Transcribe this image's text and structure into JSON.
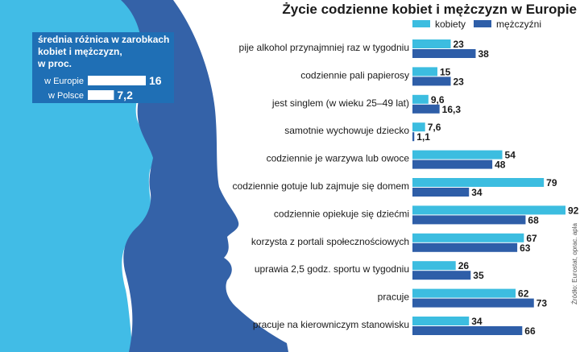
{
  "colors": {
    "women": "#3cbde0",
    "men": "#2e5ea8",
    "silhouette_light": "#41bce6",
    "silhouette_dark": "#3462a8",
    "inset_box": "#1f6fb5",
    "text": "#1a1a1a"
  },
  "chart_data": {
    "type": "bar",
    "orientation": "horizontal",
    "title": "Życie codzienne kobiet i mężczyzn w Europie",
    "unit": "%",
    "source": "Źródło: Eurostat, oprac. apla",
    "legend": [
      "kobiety",
      "mężczyźni"
    ],
    "xlim": [
      0,
      92
    ],
    "categories": [
      "pije alkohol przynajmniej raz w tygodniu",
      "codziennie pali papierosy",
      "jest singlem (w wieku 25–49 lat)",
      "samotnie wychowuje dziecko",
      "codziennie je warzywa lub owoce",
      "codziennie gotuje lub zajmuje się domem",
      "codziennie opiekuje się dziećmi",
      "korzysta z portali społecznościowych",
      "uprawia 2,5 godz. sportu w tygodniu",
      "pracuje",
      "pracuje na kierowniczym stanowisku"
    ],
    "series": [
      {
        "name": "kobiety",
        "values": [
          23,
          15,
          9.6,
          7.6,
          54,
          79,
          92,
          67,
          26,
          62,
          34
        ],
        "labels": [
          "23",
          "15",
          "9,6",
          "7,6",
          "54",
          "79",
          "92",
          "67",
          "26",
          "62",
          "34"
        ]
      },
      {
        "name": "mężczyźni",
        "values": [
          38,
          23,
          16.3,
          1.1,
          48,
          34,
          68,
          63,
          35,
          73,
          66
        ],
        "labels": [
          "38",
          "23",
          "16,3",
          "1,1",
          "48",
          "34",
          "68",
          "63",
          "35",
          "73",
          "66"
        ]
      }
    ]
  },
  "inset": {
    "title_lines": [
      "średnia różnica w zarobkach",
      "kobiet i mężczyzn,",
      "w proc."
    ],
    "items": [
      {
        "label": "w Europie",
        "value": 16,
        "value_label": "16"
      },
      {
        "label": "w Polsce",
        "value": 7.2,
        "value_label": "7,2"
      }
    ]
  }
}
